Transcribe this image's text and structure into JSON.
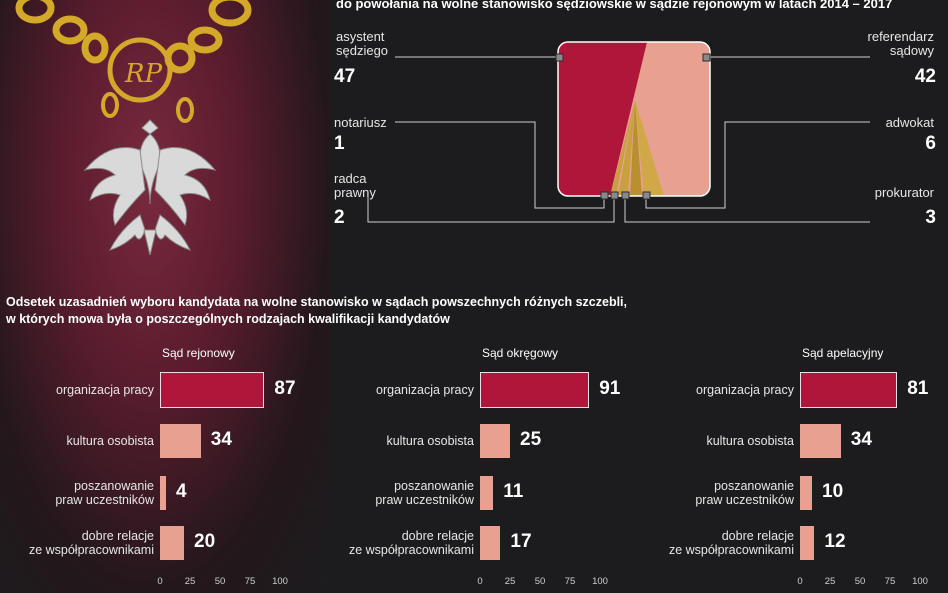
{
  "header": {
    "title": "do powołania na wolne stanowisko sędziowskie w sądzie rejonowym w latach 2014 – 2017"
  },
  "candidates": {
    "items": [
      {
        "label": "asystent\nsędziego",
        "value": "47"
      },
      {
        "label": "referendarz\nsądowy",
        "value": "42"
      },
      {
        "label": "notariusz",
        "value": "1"
      },
      {
        "label": "adwokat",
        "value": "6"
      },
      {
        "label": "radca\nprawny",
        "value": "2"
      },
      {
        "label": "prokurator",
        "value": "3"
      }
    ]
  },
  "section": {
    "title_line1": "Odsetek uzasadnień wyboru kandydata na wolne stanowisko w sądach powszechnych różnych szczebli,",
    "title_line2": "w których mowa była o poszczególnych rodzajach kwalifikacji kandydatów"
  },
  "colors": {
    "main_bar": "#b0163a",
    "other_bar": "#e8a090",
    "gold": "#c8a040",
    "background": "#1c1c1e"
  },
  "chart_data": [
    {
      "type": "area",
      "title": "",
      "categories": [
        "asystent sędziego",
        "referendarz sądowy",
        "notariusz",
        "adwokat",
        "radca prawny",
        "prokurator"
      ],
      "values": [
        47,
        42,
        1,
        6,
        2,
        3
      ]
    },
    {
      "type": "bar",
      "title": "Sąd rejonowy",
      "categories": [
        "organizacja pracy",
        "kultura osobista",
        "poszanowanie\npraw uczestników",
        "dobre relacje\nze współpracownikami"
      ],
      "values": [
        87,
        34,
        4,
        20
      ],
      "xlim": [
        0,
        100
      ],
      "xticks": [
        "0",
        "25",
        "50",
        "75",
        "100"
      ]
    },
    {
      "type": "bar",
      "title": "Sąd okręgowy",
      "categories": [
        "organizacja pracy",
        "kultura osobista",
        "poszanowanie\npraw uczestników",
        "dobre relacje\nze współpracownikami"
      ],
      "values": [
        91,
        25,
        11,
        17
      ],
      "xlim": [
        0,
        100
      ],
      "xticks": [
        "0",
        "25",
        "50",
        "75",
        "100"
      ]
    },
    {
      "type": "bar",
      "title": "Sąd apelacyjny",
      "categories": [
        "organizacja pracy",
        "kultura osobista",
        "poszanowanie\npraw uczestników",
        "dobre relacje\nze współpracownikami"
      ],
      "values": [
        81,
        34,
        10,
        12
      ],
      "xlim": [
        0,
        100
      ],
      "xticks": [
        "0",
        "25",
        "50",
        "75",
        "100"
      ]
    }
  ]
}
